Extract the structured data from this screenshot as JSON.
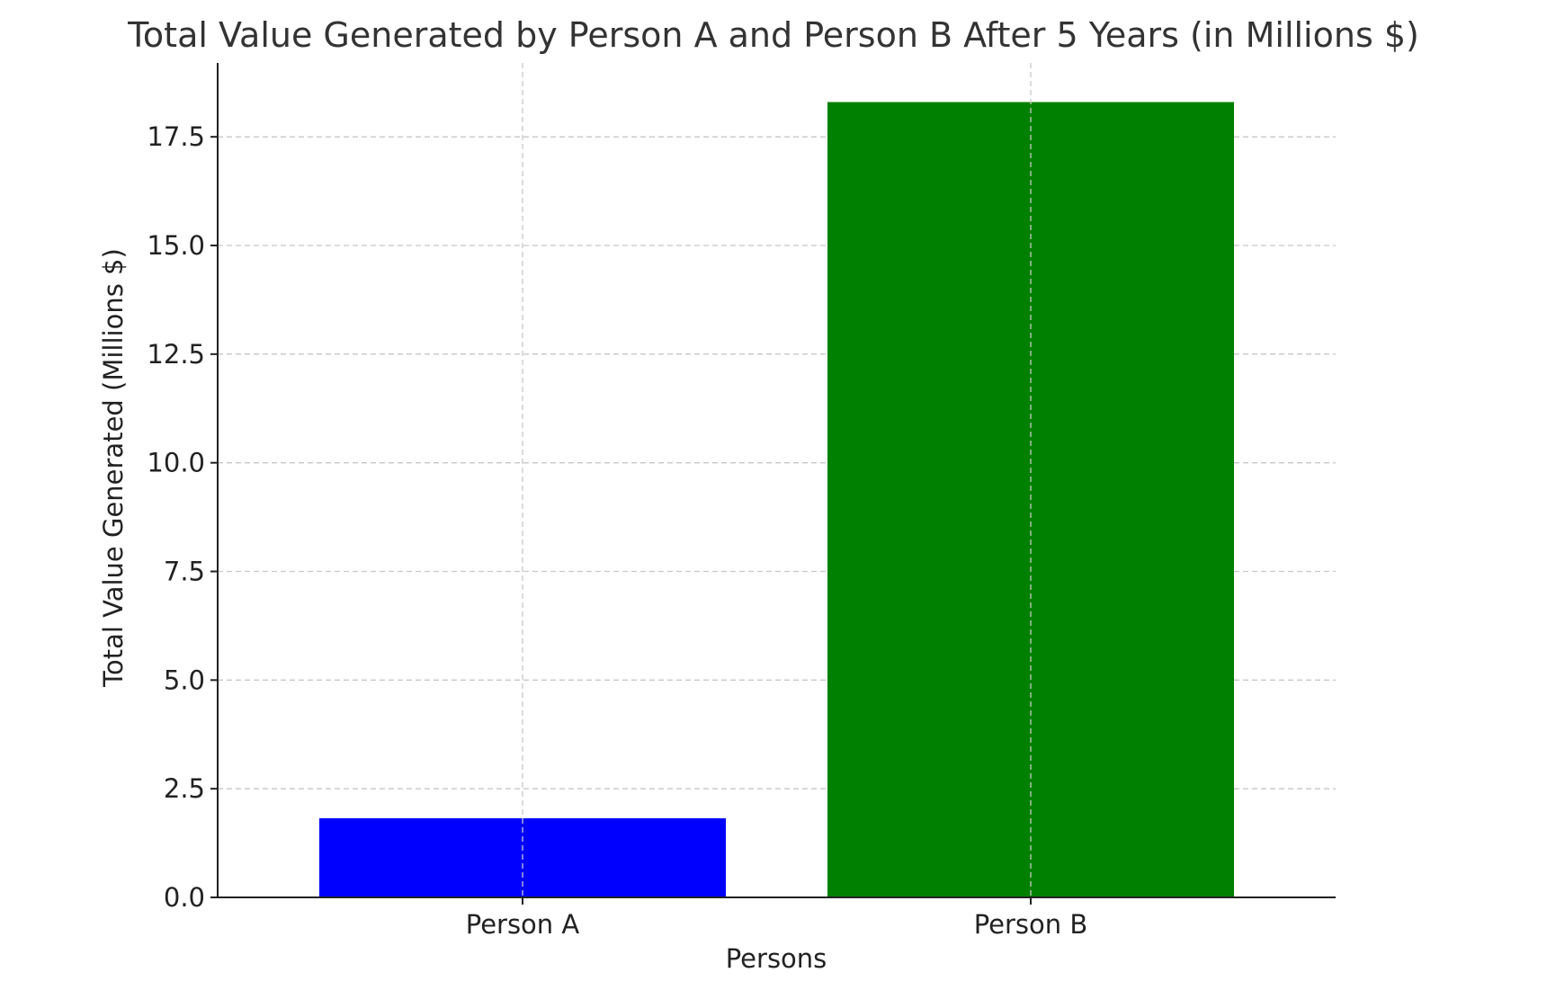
{
  "chart_data": {
    "type": "bar",
    "title": "Total Value Generated by Person A and Person B After 5 Years (in Millions $)",
    "xlabel": "Persons",
    "ylabel": "Total Value Generated (Millions $)",
    "categories": [
      "Person A",
      "Person B"
    ],
    "values": [
      1.82,
      18.3
    ],
    "colors": [
      "#0000ff",
      "#008000"
    ],
    "ylim": [
      0,
      19.2
    ],
    "yticks": [
      0.0,
      2.5,
      5.0,
      7.5,
      10.0,
      12.5,
      15.0,
      17.5
    ],
    "ytick_labels": [
      "0.0",
      "2.5",
      "5.0",
      "7.5",
      "10.0",
      "12.5",
      "15.0",
      "17.5"
    ],
    "grid": true,
    "legend": "none"
  }
}
